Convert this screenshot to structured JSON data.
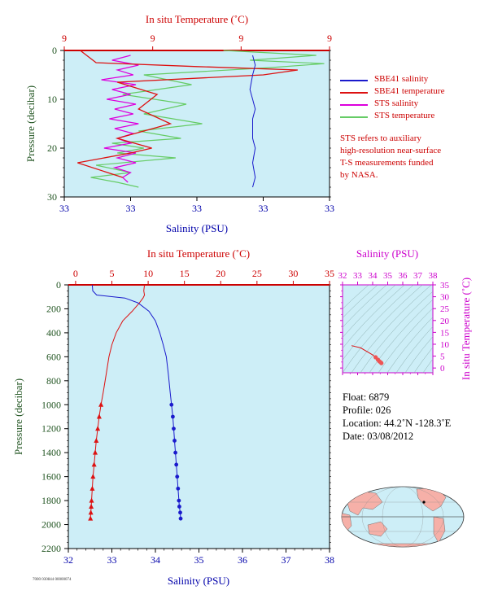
{
  "colors": {
    "salinity": "#1a1acc",
    "temperature": "#dd1111",
    "sts_salinity": "#dd00dd",
    "sts_temperature": "#66cc66",
    "plot_bg": "#cdeef7",
    "temp_axis": "#cc0000",
    "sal_axis": "#0000aa",
    "pressure_axis": "#225522",
    "ts_axis": "#cc00cc"
  },
  "legend": {
    "items": [
      {
        "label": "SBE41 salinity",
        "color": "#1a1acc"
      },
      {
        "label": "SBE41 temperature",
        "color": "#dd1111"
      },
      {
        "label": "STS salinity",
        "color": "#dd00dd"
      },
      {
        "label": "STS temperature",
        "color": "#66cc66"
      }
    ]
  },
  "note": {
    "lines": [
      "STS refers to auxiliary",
      "high-resolution near-surface",
      "T-S measurements funded",
      "by NASA."
    ]
  },
  "info": {
    "float": "Float:  6879",
    "profile": "Profile:  026",
    "location": "Location:  44.2˚N  -128.3˚E",
    "date": "Date:  03/08/2012"
  },
  "stamp": "7000 030844 00000074",
  "chart_data": [
    {
      "id": "near-surface",
      "type": "line",
      "top_xlabel": "In situ Temperature (˚C)",
      "bottom_xlabel": "Salinity (PSU)",
      "ylabel": "Pressure (decibar)",
      "top_ticks": [
        "9",
        "9",
        "9",
        "9"
      ],
      "bottom_ticks": [
        "33",
        "33",
        "33",
        "33",
        "33"
      ],
      "y_ticks": [
        0,
        10,
        20,
        30
      ],
      "ylim": [
        0,
        30
      ],
      "series": [
        {
          "name": "SBE41 salinity",
          "x": [
            0.71,
            0.72,
            0.71,
            0.7,
            0.71,
            0.72,
            0.71,
            0.71,
            0.71,
            0.72,
            0.71,
            0.72,
            0.71
          ],
          "y": [
            1,
            3,
            5,
            8,
            10,
            12,
            14,
            16,
            18,
            20,
            23,
            26,
            28
          ]
        },
        {
          "name": "SBE41 temperature",
          "x": [
            0.06,
            0.12,
            0.5,
            0.88,
            0.75,
            0.2,
            0.35,
            0.28,
            0.4,
            0.2,
            0.33,
            0.25,
            0.05,
            0.22
          ],
          "y": [
            0,
            2.5,
            3.3,
            4,
            5,
            6.5,
            9,
            12,
            15,
            18,
            20,
            21,
            23,
            26
          ]
        },
        {
          "name": "STS salinity",
          "x": [
            0.25,
            0.18,
            0.28,
            0.2,
            0.26,
            0.14,
            0.27,
            0.18,
            0.25,
            0.16,
            0.27,
            0.19,
            0.26,
            0.17,
            0.28,
            0.19,
            0.26,
            0.2,
            0.25,
            0.15,
            0.27,
            0.2,
            0.27,
            0.19,
            0.25,
            0.22,
            0.24
          ],
          "y": [
            1,
            2,
            3,
            4,
            5,
            6,
            7,
            8,
            9,
            10,
            11,
            12,
            13,
            14,
            15,
            16,
            17,
            18,
            19,
            20,
            21,
            22,
            23,
            24,
            25,
            26,
            27
          ]
        },
        {
          "name": "STS temperature",
          "x": [
            0.6,
            0.95,
            0.7,
            0.98,
            0.78,
            0.3,
            0.48,
            0.22,
            0.46,
            0.3,
            0.52,
            0.28,
            0.44,
            0.18,
            0.3,
            0.2,
            0.42,
            0.12,
            0.25,
            0.1,
            0.2,
            0.28
          ],
          "y": [
            0,
            1,
            2,
            2.7,
            3.5,
            5,
            7,
            9,
            11,
            13,
            15,
            16.5,
            18,
            19,
            20,
            21,
            22,
            23.5,
            25,
            26,
            27,
            28
          ]
        }
      ]
    },
    {
      "id": "full-profile",
      "type": "line",
      "top_xlabel": "In situ Temperature (˚C)",
      "bottom_xlabel": "Salinity (PSU)",
      "ylabel": "Pressure (decibar)",
      "temp_ticks": [
        0,
        5,
        10,
        15,
        20,
        25,
        30,
        35
      ],
      "sal_ticks": [
        32,
        33,
        34,
        35,
        36,
        37,
        38
      ],
      "pressure_ticks": [
        0,
        200,
        400,
        600,
        800,
        1000,
        1200,
        1400,
        1600,
        1800,
        2000,
        2200
      ],
      "temp_lim": [
        -1,
        35
      ],
      "sal_lim": [
        32,
        38
      ],
      "pressure_lim": [
        0,
        2200
      ],
      "series": [
        {
          "name": "Salinity",
          "x": [
            32.55,
            32.56,
            32.65,
            33.3,
            33.6,
            33.85,
            34.0,
            34.1,
            34.18,
            34.25,
            34.3,
            34.34,
            34.37,
            34.4,
            34.42,
            34.44,
            34.46,
            34.48,
            34.5,
            34.52,
            34.54,
            34.55,
            34.57,
            34.58
          ],
          "y": [
            0,
            50,
            85,
            110,
            150,
            220,
            300,
            400,
            500,
            600,
            750,
            900,
            1000,
            1100,
            1200,
            1300,
            1400,
            1500,
            1600,
            1700,
            1800,
            1850,
            1900,
            1950
          ]
        },
        {
          "name": "Temperature",
          "x": [
            9.5,
            9.4,
            9.5,
            9.3,
            8.8,
            7.8,
            6.5,
            5.6,
            5.0,
            4.6,
            4.2,
            3.8,
            3.5,
            3.25,
            3.05,
            2.85,
            2.7,
            2.55,
            2.4,
            2.3,
            2.2,
            2.15,
            2.1,
            2.05
          ],
          "y": [
            0,
            50,
            85,
            110,
            150,
            220,
            300,
            400,
            500,
            600,
            750,
            900,
            1000,
            1100,
            1200,
            1300,
            1400,
            1500,
            1600,
            1700,
            1800,
            1850,
            1900,
            1950
          ]
        }
      ]
    },
    {
      "id": "ts-diagram",
      "type": "scatter",
      "top_xlabel": "Salinity (PSU)",
      "ylabel": "In situ Temperature (˚C)",
      "sal_ticks": [
        32,
        33,
        34,
        35,
        36,
        37,
        38
      ],
      "temp_ticks": [
        0,
        5,
        10,
        15,
        20,
        25,
        30,
        35
      ],
      "sal_lim": [
        32,
        38
      ],
      "temp_lim": [
        -2,
        35
      ],
      "series": [
        {
          "name": "T-S",
          "x": [
            32.6,
            33.2,
            33.6,
            34.0,
            34.2,
            34.35,
            34.45,
            34.55,
            34.58
          ],
          "y": [
            9.4,
            8.5,
            7.0,
            5.5,
            4.5,
            3.5,
            2.8,
            2.3,
            2.05
          ]
        }
      ]
    }
  ],
  "map": {
    "name": "world-map"
  }
}
